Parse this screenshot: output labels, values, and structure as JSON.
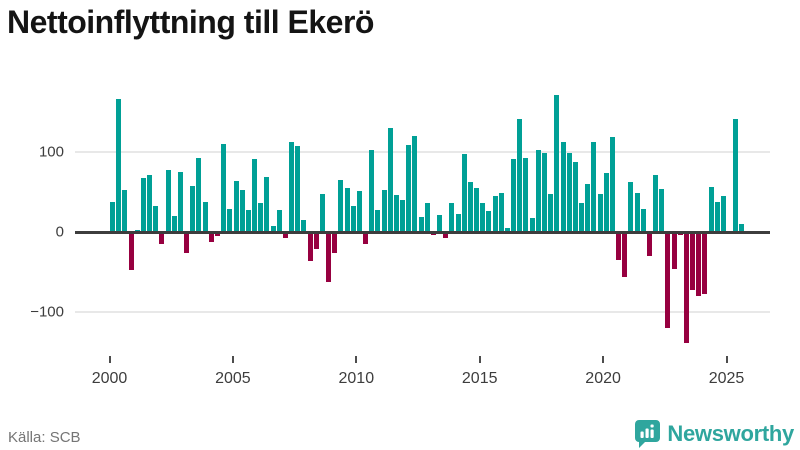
{
  "title": "Nettoinflyttning till Ekerö",
  "source": "Källa: SCB",
  "brand": {
    "name": "Newsworthy",
    "color": "#2fa69e"
  },
  "chart_data": {
    "type": "bar",
    "title": "Nettoinflyttning till Ekerö",
    "x_freq": "quarterly",
    "x_start": "2000Q1",
    "quarters": [
      "2000Q1",
      "2000Q2",
      "2000Q3",
      "2000Q4",
      "2001Q1",
      "2001Q2",
      "2001Q3",
      "2001Q4",
      "2002Q1",
      "2002Q2",
      "2002Q3",
      "2002Q4",
      "2003Q1",
      "2003Q2",
      "2003Q3",
      "2003Q4",
      "2004Q1",
      "2004Q2",
      "2004Q3",
      "2004Q4",
      "2005Q1",
      "2005Q2",
      "2005Q3",
      "2005Q4",
      "2006Q1",
      "2006Q2",
      "2006Q3",
      "2006Q4",
      "2007Q1",
      "2007Q2",
      "2007Q3",
      "2007Q4",
      "2008Q1",
      "2008Q2",
      "2008Q3",
      "2008Q4",
      "2009Q1",
      "2009Q2",
      "2009Q3",
      "2009Q4",
      "2010Q1",
      "2010Q2",
      "2010Q3",
      "2010Q4",
      "2011Q1",
      "2011Q2",
      "2011Q3",
      "2011Q4",
      "2012Q1",
      "2012Q2",
      "2012Q3",
      "2012Q4",
      "2013Q1",
      "2013Q2",
      "2013Q3",
      "2013Q4",
      "2014Q1",
      "2014Q2",
      "2014Q3",
      "2014Q4",
      "2015Q1",
      "2015Q2",
      "2015Q3",
      "2015Q4",
      "2016Q1",
      "2016Q2",
      "2016Q3",
      "2016Q4",
      "2017Q1",
      "2017Q2",
      "2017Q3",
      "2017Q4",
      "2018Q1",
      "2018Q2",
      "2018Q3",
      "2018Q4",
      "2019Q1",
      "2019Q2",
      "2019Q3",
      "2019Q4",
      "2020Q1",
      "2020Q2",
      "2020Q3",
      "2020Q4",
      "2021Q1",
      "2021Q2",
      "2021Q3",
      "2021Q4",
      "2022Q1",
      "2022Q2",
      "2022Q3",
      "2022Q4",
      "2023Q1",
      "2023Q2",
      "2023Q3",
      "2023Q4",
      "2024Q1",
      "2024Q2",
      "2024Q3",
      "2024Q4",
      "2025Q1",
      "2025Q2",
      "2025Q3"
    ],
    "series": [
      {
        "name": "Nettoinflyttning",
        "values": [
          38,
          166,
          53,
          -48,
          2,
          67,
          71,
          33,
          -15,
          78,
          20,
          75,
          -26,
          58,
          93,
          38,
          -13,
          -5,
          110,
          29,
          64,
          52,
          28,
          91,
          36,
          69,
          7,
          28,
          -8,
          113,
          108,
          15,
          -36,
          -21,
          48,
          -62,
          -26,
          65,
          55,
          32,
          51,
          -15,
          102,
          27,
          53,
          130,
          46,
          40,
          109,
          120,
          19,
          36,
          -4,
          21,
          -7,
          36,
          23,
          97,
          62,
          55,
          36,
          26,
          45,
          49,
          5,
          91,
          141,
          92,
          18,
          102,
          99,
          47,
          171,
          112,
          99,
          88,
          36,
          60,
          112,
          48,
          74,
          119,
          -35,
          -56,
          62,
          49,
          29,
          -30,
          71,
          54,
          -120,
          -46,
          -4,
          -139,
          -73,
          -80,
          -78,
          56,
          38,
          45,
          0,
          141,
          10
        ]
      }
    ],
    "x_tick_labels": [
      "2000",
      "2005",
      "2010",
      "2015",
      "2020",
      "2025"
    ],
    "x_tick_years": [
      2000,
      2005,
      2010,
      2015,
      2020,
      2025
    ],
    "y_ticks": [
      {
        "label": "100",
        "value": 100
      },
      {
        "label": "0",
        "value": 0
      },
      {
        "label": "−100",
        "value": -100
      }
    ],
    "ylim": [
      -150,
      180
    ],
    "grid": "horizontal",
    "legend": "none",
    "colors": {
      "positive": "#00a096",
      "negative": "#970040"
    }
  }
}
